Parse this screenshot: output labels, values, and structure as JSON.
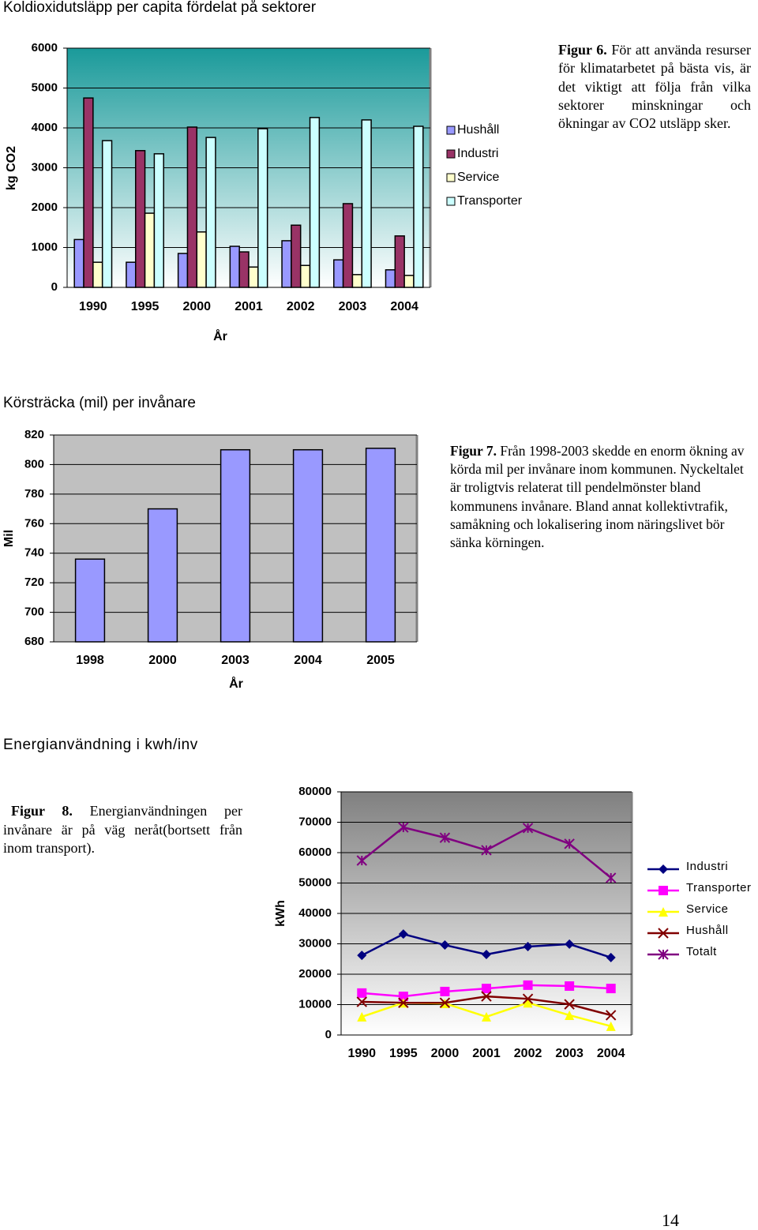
{
  "chart_data": [
    {
      "type": "bar",
      "title": "Koldioxidutsläpp per capita fördelat på sektorer",
      "caption_label": "Figur 6.",
      "caption_text": "För att använda resurser för klimatarbetet på bästa vis, är det viktigt att följa från vilka sektorer minskningar och ökningar av CO2 utsläpp sker.",
      "x_label": "År",
      "y_label": "kg CO2",
      "categories": [
        "1990",
        "1995",
        "2000",
        "2001",
        "2002",
        "2003",
        "2004"
      ],
      "series": [
        {
          "name": "Hushåll",
          "color": "#9999ff",
          "values": [
            1200,
            630,
            850,
            1030,
            1170,
            690,
            440
          ]
        },
        {
          "name": "Industri",
          "color": "#993366",
          "values": [
            4750,
            3430,
            4020,
            890,
            1560,
            2100,
            1290
          ]
        },
        {
          "name": "Service",
          "color": "#ffffcc",
          "values": [
            630,
            1860,
            1390,
            510,
            550,
            320,
            300
          ]
        },
        {
          "name": "Transporter",
          "color": "#ccffff",
          "values": [
            3680,
            3350,
            3760,
            3980,
            4260,
            4200,
            4040
          ]
        }
      ],
      "ylim": [
        0,
        6000
      ],
      "yticks": [
        0,
        1000,
        2000,
        3000,
        4000,
        5000,
        6000
      ],
      "grid": true,
      "legend": "right"
    },
    {
      "type": "bar",
      "title": "Körsträcka (mil) per invånare",
      "caption_label": "Figur 7.",
      "caption_text": "Från 1998-2003 skedde en enorm ökning av körda mil per invånare inom kommunen. Nyckeltalet är troligtvis relaterat till pendelmönster bland kommunens invånare. Bland annat kollektivtrafik, samåkning och lokalisering inom näringslivet bör sänka körningen.",
      "x_label": "År",
      "y_label": "Mil",
      "categories": [
        "1998",
        "2000",
        "2003",
        "2004",
        "2005"
      ],
      "series": [
        {
          "color": "#9999ff",
          "values": [
            736,
            770,
            810,
            810,
            811
          ]
        }
      ],
      "ylim": [
        680,
        820
      ],
      "yticks": [
        680,
        700,
        720,
        740,
        760,
        780,
        800,
        820
      ],
      "grid": true
    },
    {
      "type": "line",
      "title": "Energianvändning i kwh/inv",
      "caption_label": "Figur 8.",
      "caption_text": "Energianvändningen per invånare är på väg neråt(bortsett från inom transport).",
      "y_label": "kWh",
      "categories": [
        "1990",
        "1995",
        "2000",
        "2001",
        "2002",
        "2003",
        "2004"
      ],
      "series": [
        {
          "name": "Industri",
          "color": "#000080",
          "marker": "diamond",
          "values": [
            26200,
            33200,
            29600,
            26500,
            29100,
            29900,
            25500
          ]
        },
        {
          "name": "Transporter",
          "color": "#ff00ff",
          "marker": "square",
          "values": [
            13800,
            12700,
            14300,
            15300,
            16400,
            16100,
            15300
          ]
        },
        {
          "name": "Service",
          "color": "#ffff00",
          "marker": "triangle",
          "values": [
            6000,
            10600,
            10400,
            6000,
            10600,
            6500,
            2900
          ]
        },
        {
          "name": "Hushåll",
          "color": "#800000",
          "marker": "x",
          "values": [
            10900,
            10600,
            10600,
            12700,
            11900,
            10100,
            6500
          ]
        },
        {
          "name": "Totalt",
          "color": "#800080",
          "marker": "star",
          "values": [
            57400,
            68300,
            64900,
            60800,
            68100,
            62900,
            51700
          ]
        }
      ],
      "ylim": [
        0,
        80000
      ],
      "yticks": [
        0,
        10000,
        20000,
        30000,
        40000,
        50000,
        60000,
        70000,
        80000
      ],
      "grid": true,
      "legend": "right"
    }
  ],
  "page_number": "14"
}
